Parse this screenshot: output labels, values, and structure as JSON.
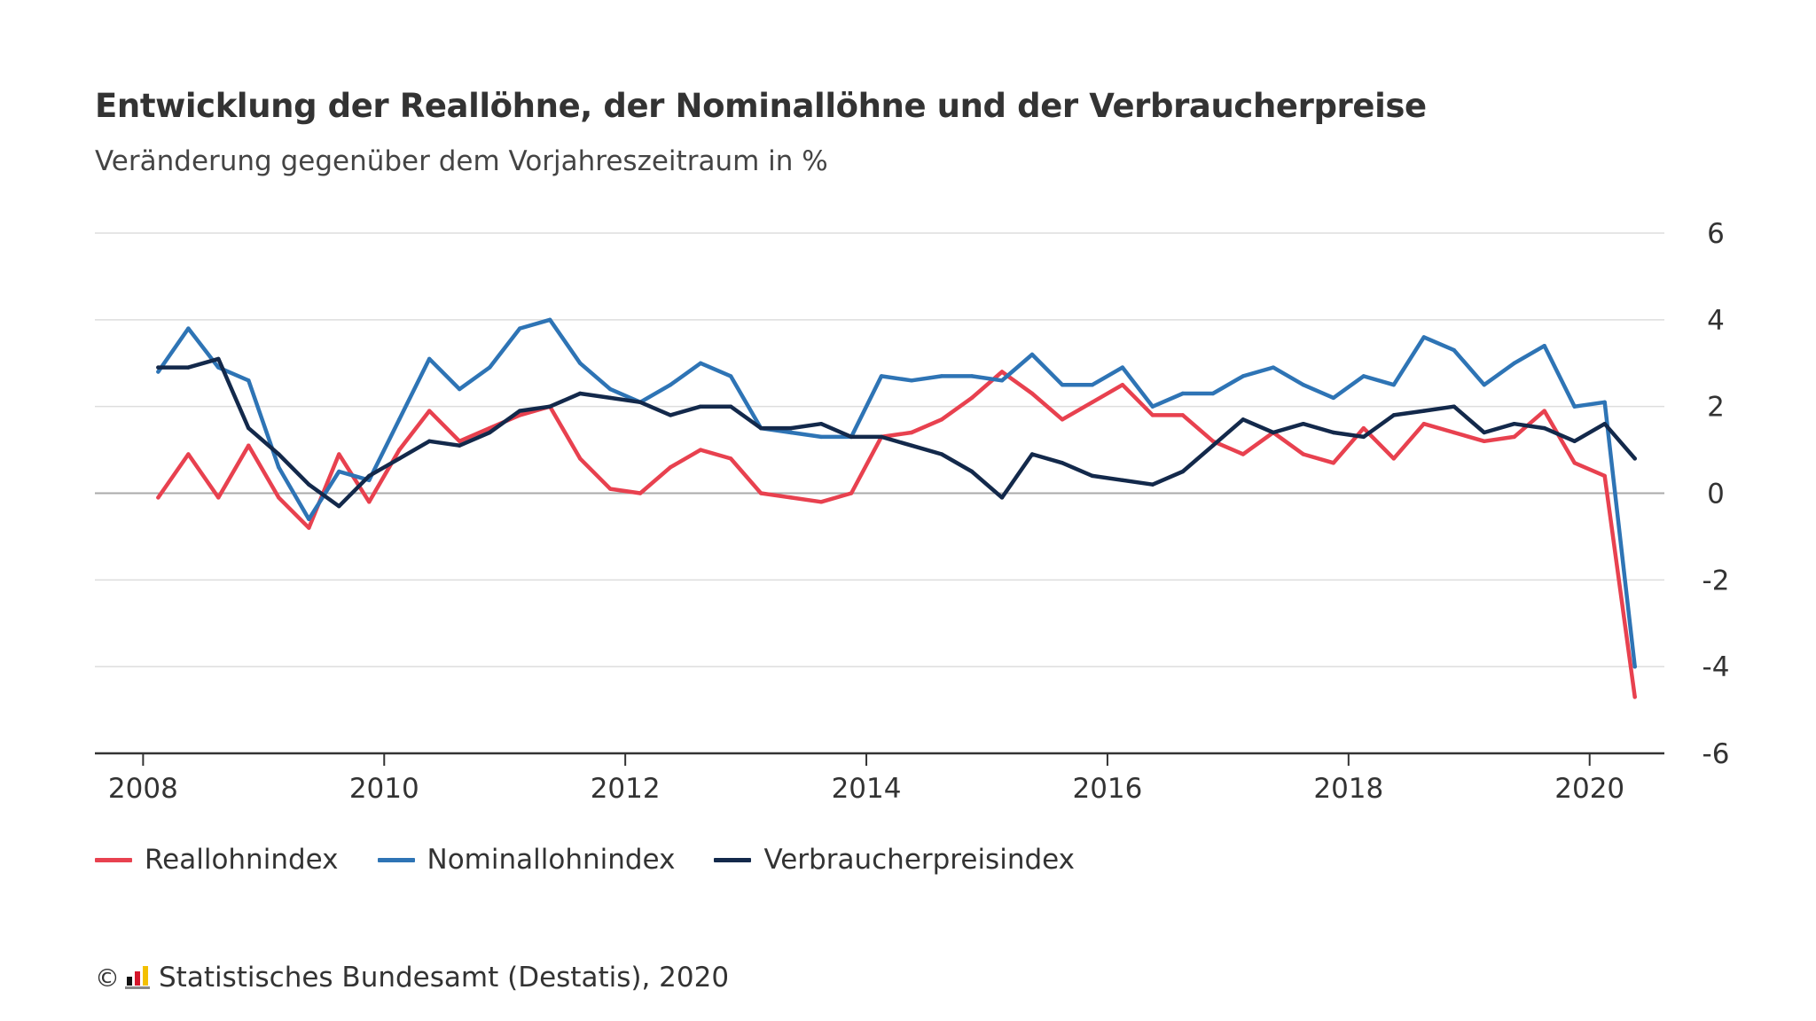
{
  "chart_data": {
    "type": "line",
    "title": "Entwicklung der Reallöhne, der Nominallöhne und der Verbraucherpreise",
    "subtitle": "Veränderung gegenüber dem Vorjahreszeitraum in %",
    "xlabel": "",
    "ylabel": "",
    "x_ticks": [
      "2008",
      "2010",
      "2012",
      "2014",
      "2016",
      "2018",
      "2020"
    ],
    "y_ticks": [
      6,
      4,
      2,
      0,
      -2,
      -4,
      -6
    ],
    "ylim": [
      -6,
      6
    ],
    "xlim": [
      2007.6,
      2020.62
    ],
    "grid": true,
    "legend_position": "bottom-left",
    "x": [
      2008.125,
      2008.375,
      2008.625,
      2008.875,
      2009.125,
      2009.375,
      2009.625,
      2009.875,
      2010.125,
      2010.375,
      2010.625,
      2010.875,
      2011.125,
      2011.375,
      2011.625,
      2011.875,
      2012.125,
      2012.375,
      2012.625,
      2012.875,
      2013.125,
      2013.375,
      2013.625,
      2013.875,
      2014.125,
      2014.375,
      2014.625,
      2014.875,
      2015.125,
      2015.375,
      2015.625,
      2015.875,
      2016.125,
      2016.375,
      2016.625,
      2016.875,
      2017.125,
      2017.375,
      2017.625,
      2017.875,
      2018.125,
      2018.375,
      2018.625,
      2018.875,
      2019.125,
      2019.375,
      2019.625,
      2019.875,
      2020.125,
      2020.375
    ],
    "series": [
      {
        "name": "Reallohnindex",
        "color": "#e8414f",
        "values": [
          -0.1,
          0.9,
          -0.1,
          1.1,
          -0.1,
          -0.8,
          0.9,
          -0.2,
          1.0,
          1.9,
          1.2,
          1.5,
          1.8,
          2.0,
          0.8,
          0.1,
          0.0,
          0.6,
          1.0,
          0.8,
          0.0,
          -0.1,
          -0.2,
          0.0,
          1.3,
          1.4,
          1.7,
          2.2,
          2.8,
          2.3,
          1.7,
          2.1,
          2.5,
          1.8,
          1.8,
          1.2,
          0.9,
          1.4,
          0.9,
          0.7,
          1.5,
          0.8,
          1.6,
          1.4,
          1.2,
          1.3,
          1.9,
          0.7,
          0.4,
          -4.7
        ]
      },
      {
        "name": "Nominallohnindex",
        "color": "#2e74b5",
        "values": [
          2.8,
          3.8,
          2.9,
          2.6,
          0.6,
          -0.6,
          0.5,
          0.3,
          1.7,
          3.1,
          2.4,
          2.9,
          3.8,
          4.0,
          3.0,
          2.4,
          2.1,
          2.5,
          3.0,
          2.7,
          1.5,
          1.4,
          1.3,
          1.3,
          2.7,
          2.6,
          2.7,
          2.7,
          2.6,
          3.2,
          2.5,
          2.5,
          2.9,
          2.0,
          2.3,
          2.3,
          2.7,
          2.9,
          2.5,
          2.2,
          2.7,
          2.5,
          3.6,
          3.3,
          2.5,
          3.0,
          3.4,
          2.0,
          2.1,
          -4.0
        ]
      },
      {
        "name": "Verbraucherpreisindex",
        "color": "#13294b",
        "values": [
          2.9,
          2.9,
          3.1,
          1.5,
          0.9,
          0.2,
          -0.3,
          0.4,
          0.8,
          1.2,
          1.1,
          1.4,
          1.9,
          2.0,
          2.3,
          2.2,
          2.1,
          1.8,
          2.0,
          2.0,
          1.5,
          1.5,
          1.6,
          1.3,
          1.3,
          1.1,
          0.9,
          0.5,
          -0.1,
          0.9,
          0.7,
          0.4,
          0.3,
          0.2,
          0.5,
          1.1,
          1.7,
          1.4,
          1.6,
          1.4,
          1.3,
          1.8,
          1.9,
          2.0,
          1.4,
          1.6,
          1.5,
          1.2,
          1.6,
          0.8
        ]
      }
    ]
  },
  "source": {
    "copyright": "©",
    "logo_icon": "destatis-logo-icon",
    "text": "Statistisches Bundesamt (Destatis), 2020"
  },
  "colors": {
    "grid": "#dddddd",
    "zero_line": "#aaaaaa",
    "axis": "#333333",
    "text": "#333333"
  }
}
